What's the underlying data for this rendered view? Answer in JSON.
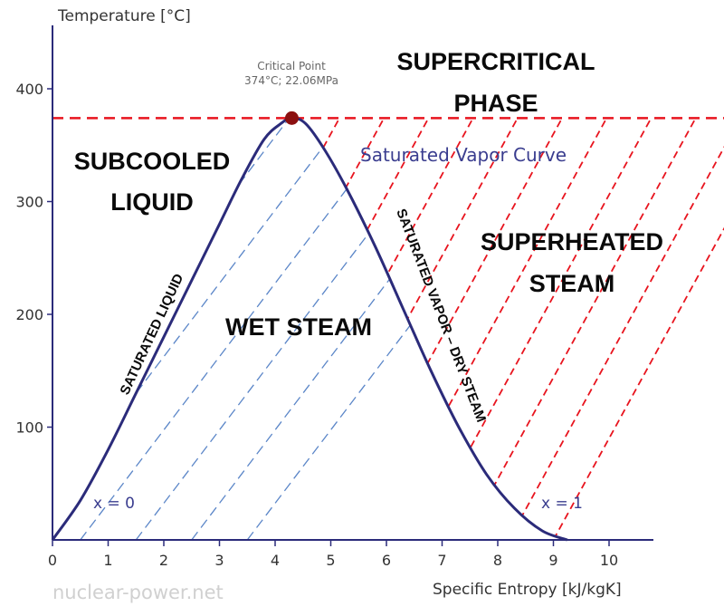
{
  "chart_data": {
    "type": "line",
    "xlabel": "Specific Entropy [kJ/kgK]",
    "ylabel": "Temperature [°C]",
    "xlim": [
      0,
      11
    ],
    "ylim": [
      0,
      460
    ],
    "x_ticks": [
      0,
      1,
      2,
      3,
      4,
      5,
      6,
      7,
      8,
      9,
      10
    ],
    "y_ticks": [
      100,
      200,
      300,
      400
    ],
    "series": [
      {
        "name": "Saturated Vapor Curve",
        "color": "#2b2b7a",
        "points": [
          [
            0,
            0
          ],
          [
            0.5,
            35
          ],
          [
            1,
            80
          ],
          [
            1.5,
            130
          ],
          [
            2,
            180
          ],
          [
            2.5,
            230
          ],
          [
            3,
            280
          ],
          [
            3.4,
            320
          ],
          [
            3.8,
            355
          ],
          [
            4.1,
            369
          ],
          [
            4.3,
            374
          ],
          [
            4.55,
            369
          ],
          [
            4.9,
            345
          ],
          [
            5.3,
            310
          ],
          [
            5.8,
            260
          ],
          [
            6.3,
            205
          ],
          [
            6.8,
            150
          ],
          [
            7.3,
            100
          ],
          [
            7.8,
            58
          ],
          [
            8.3,
            28
          ],
          [
            8.8,
            8
          ],
          [
            9.25,
            0
          ]
        ]
      }
    ],
    "critical_isotherm": {
      "y": 374,
      "color": "#e8141e"
    },
    "critical_point": {
      "x": 4.3,
      "y": 374,
      "color": "#8b1010",
      "label_line1": "Critical Point",
      "label_line2": "374°C; 22.06MPa"
    },
    "wet_hatch": {
      "color": "#5b86c8",
      "slope": 0.65,
      "spacing": 1.0,
      "start": -4.5,
      "count": 9
    },
    "superheated_hatch": {
      "color": "#e8141e",
      "slope": 0.9,
      "spacing": 0.8,
      "start": 0.2,
      "count": 12
    },
    "region_labels": {
      "supercritical_line1": "SUPERCRITICAL",
      "supercritical_line2": "PHASE",
      "subcooled_line1": "SUBCOOLED",
      "subcooled_line2": "LIQUID",
      "superheated_line1": "SUPERHEATED",
      "superheated_line2": "STEAM",
      "wet_steam": "WET STEAM"
    },
    "curve_labels": {
      "saturated_vapor_curve": "Saturated Vapor Curve",
      "saturated_liquid": "SATURATED LIQUID",
      "saturated_vapor_dry": "SATURATED VAPOR – DRY STEAM",
      "x0": "x = 0",
      "x1": "x = 1"
    },
    "watermark": "nuclear-power.net",
    "colors": {
      "axis": "#2b2b7a",
      "curve": "#2b2b7a",
      "label_blue": "#3a3d8f"
    }
  }
}
